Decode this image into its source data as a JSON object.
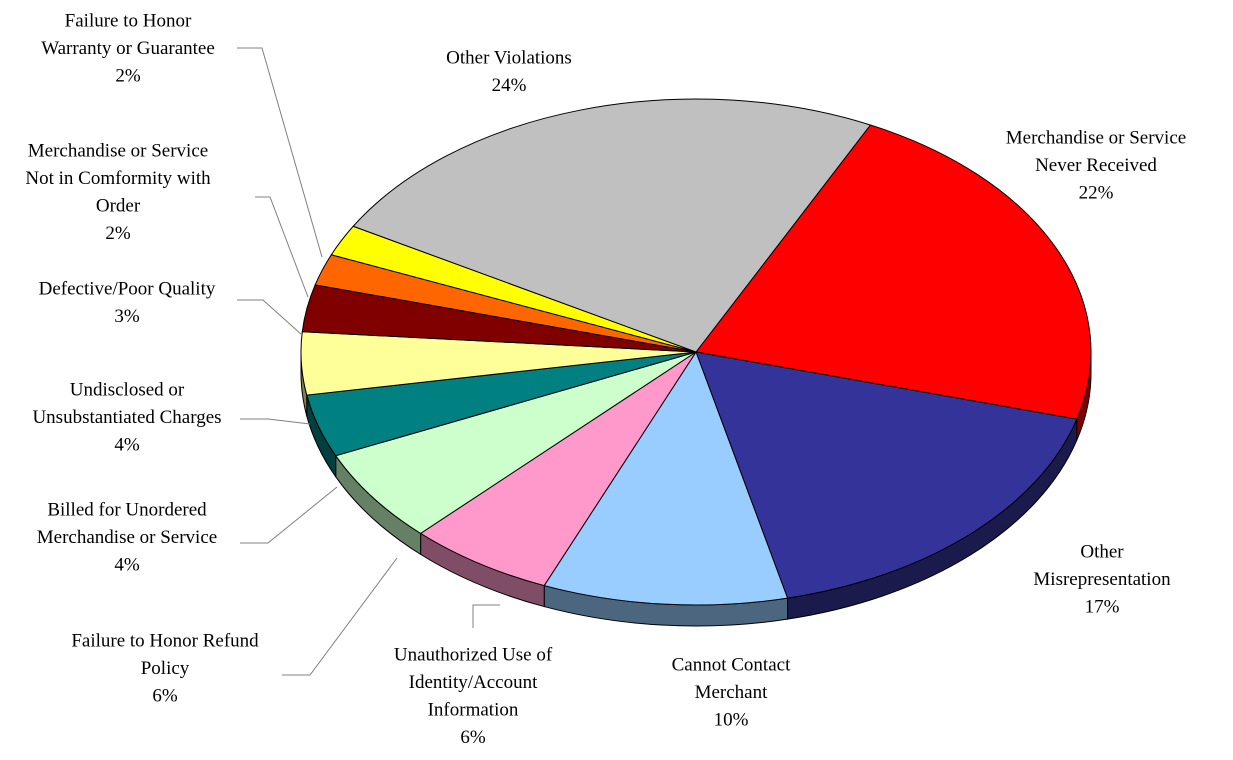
{
  "chart_data": {
    "type": "pie",
    "three_d": true,
    "title": "",
    "slices": [
      {
        "label": "Merchandise or Service Never Received",
        "lines": [
          "Merchandise or Service",
          "Never Received"
        ],
        "value": 22,
        "value_label": "22%",
        "color": "#FF0000"
      },
      {
        "label": "Other Misrepresentation",
        "lines": [
          "Other",
          "Misrepresentation"
        ],
        "value": 17,
        "value_label": "17%",
        "color": "#333399"
      },
      {
        "label": "Cannot Contact Merchant",
        "lines": [
          "Cannot Contact",
          "Merchant"
        ],
        "value": 10,
        "value_label": "10%",
        "color": "#99CCFF"
      },
      {
        "label": "Unauthorized Use of Identity/Account Information",
        "lines": [
          "Unauthorized Use of",
          "Identity/Account",
          "Information"
        ],
        "value": 6,
        "value_label": "6%",
        "color": "#FF99CC"
      },
      {
        "label": "Failure to Honor Refund Policy",
        "lines": [
          "Failure to Honor Refund",
          "Policy"
        ],
        "value": 6,
        "value_label": "6%",
        "color": "#CCFFCC"
      },
      {
        "label": "Billed for Unordered Merchandise or Service",
        "lines": [
          "Billed for Unordered",
          "Merchandise or Service"
        ],
        "value": 4,
        "value_label": "4%",
        "color": "#008080"
      },
      {
        "label": "Undisclosed or Unsubstantiated Charges",
        "lines": [
          "Undisclosed or",
          "Unsubstantiated Charges"
        ],
        "value": 4,
        "value_label": "4%",
        "color": "#FFFF99"
      },
      {
        "label": "Defective/Poor Quality",
        "lines": [
          "Defective/Poor Quality"
        ],
        "value": 3,
        "value_label": "3%",
        "color": "#800000"
      },
      {
        "label": "Merchandise or Service Not in Comformity with Order",
        "lines": [
          "Merchandise or Service",
          "Not in Comformity with",
          "Order"
        ],
        "value": 2,
        "value_label": "2%",
        "color": "#FF6600"
      },
      {
        "label": "Failure to Honor Warranty or Guarantee",
        "lines": [
          "Failure to Honor",
          "Warranty or Guarantee"
        ],
        "value": 2,
        "value_label": "2%",
        "color": "#FFFF00"
      },
      {
        "label": "Other Violations",
        "lines": [
          "Other Violations"
        ],
        "value": 24,
        "value_label": "24%",
        "color": "#C0C0C0"
      }
    ]
  }
}
